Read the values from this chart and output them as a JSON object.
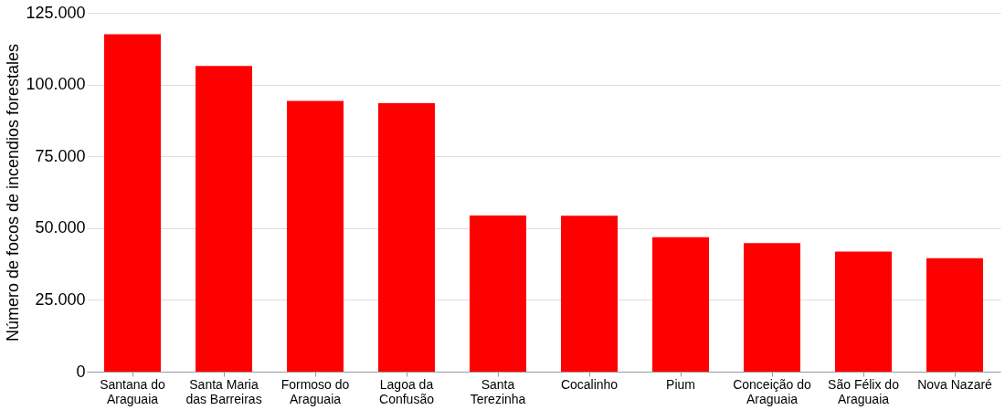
{
  "chart_data": {
    "type": "bar",
    "ylabel": "Número de focos de incendios forestales",
    "categories": [
      "Santana do Araguaia",
      "Santa Maria das Barreiras",
      "Formoso do Araguaia",
      "Lagoa da Confusão",
      "Santa Terezinha",
      "Cocalinho",
      "Pium",
      "Conceição do Araguaia",
      "São Félix do Araguaia",
      "Nova Nazaré"
    ],
    "values": [
      117500,
      106500,
      94300,
      93500,
      54400,
      54300,
      46800,
      44800,
      41800,
      39500
    ],
    "color": "#ff0000",
    "ylim": [
      0,
      125000
    ],
    "yticks": [
      {
        "value": 0,
        "label": "0"
      },
      {
        "value": 25000,
        "label": "25.000"
      },
      {
        "value": 50000,
        "label": "50.000"
      },
      {
        "value": 75000,
        "label": "75.000"
      },
      {
        "value": 100000,
        "label": "100.000"
      },
      {
        "value": 125000,
        "label": "125.000"
      }
    ],
    "grid": "y"
  }
}
